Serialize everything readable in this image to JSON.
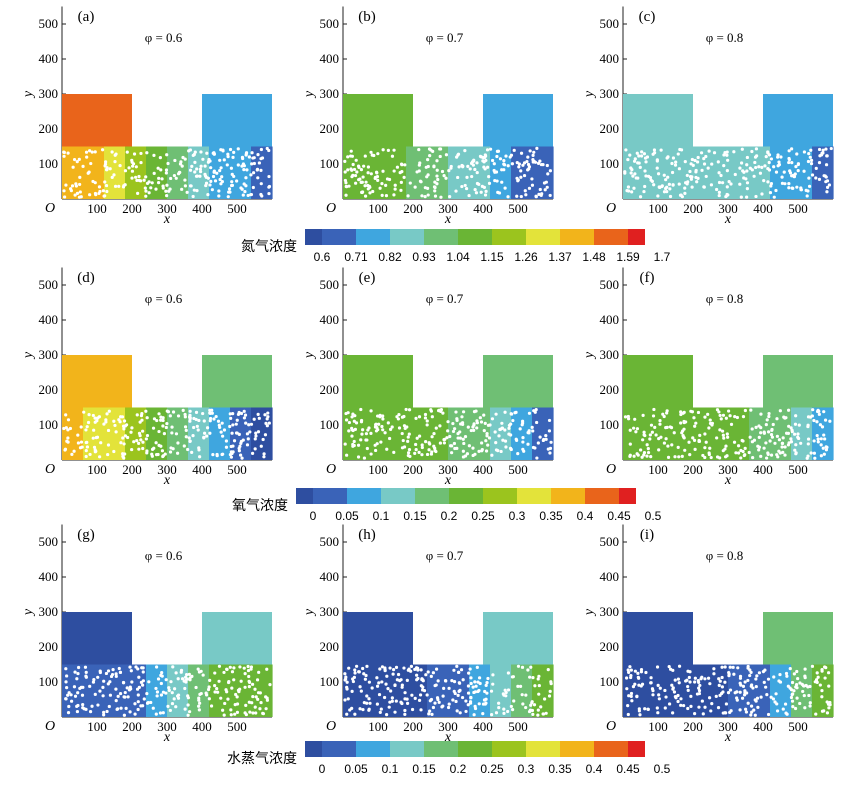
{
  "chart_data": {
    "type": "heatmap",
    "colormap": [
      "#2e4ea0",
      "#3a63b8",
      "#3fa6df",
      "#78c9c6",
      "#6fbf74",
      "#6ab535",
      "#9bc41e",
      "#e3e33a",
      "#f2b41b",
      "#e9641b",
      "#e02020"
    ],
    "rows": [
      {
        "title": "氮气浓度",
        "levels": [
          "0.6",
          "0.71",
          "0.82",
          "0.93",
          "1.04",
          "1.15",
          "1.26",
          "1.37",
          "1.48",
          "1.59",
          "1.7"
        ],
        "panels": [
          {
            "label": "(a)",
            "phi": "φ = 0.6",
            "box_color_index": 9,
            "right_color_index": 2,
            "bed_gradient": [
              8,
              8,
              7,
              6,
              5,
              4,
              3,
              2,
              2,
              1
            ]
          },
          {
            "label": "(b)",
            "phi": "φ = 0.7",
            "box_color_index": 5,
            "right_color_index": 2,
            "bed_gradient": [
              5,
              5,
              5,
              4,
              4,
              3,
              3,
              2,
              1,
              1
            ]
          },
          {
            "label": "(c)",
            "phi": "φ = 0.8",
            "box_color_index": 3,
            "right_color_index": 2,
            "bed_gradient": [
              3,
              3,
              3,
              3,
              3,
              3,
              3,
              2,
              2,
              1
            ]
          }
        ]
      },
      {
        "title": "氧气浓度",
        "levels": [
          "0",
          "0.05",
          "0.1",
          "0.15",
          "0.2",
          "0.25",
          "0.3",
          "0.35",
          "0.4",
          "0.45",
          "0.5"
        ],
        "panels": [
          {
            "label": "(d)",
            "phi": "φ = 0.6",
            "box_color_index": 8,
            "right_color_index": 4,
            "bed_gradient": [
              8,
              7,
              7,
              6,
              5,
              4,
              3,
              2,
              1,
              0
            ]
          },
          {
            "label": "(e)",
            "phi": "φ = 0.7",
            "box_color_index": 5,
            "right_color_index": 4,
            "bed_gradient": [
              5,
              5,
              5,
              5,
              5,
              4,
              4,
              3,
              2,
              1
            ]
          },
          {
            "label": "(f)",
            "phi": "φ = 0.8",
            "box_color_index": 5,
            "right_color_index": 4,
            "bed_gradient": [
              5,
              5,
              5,
              5,
              5,
              5,
              4,
              4,
              3,
              2
            ]
          }
        ]
      },
      {
        "title": "水蒸气浓度",
        "levels": [
          "0",
          "0.05",
          "0.1",
          "0.15",
          "0.2",
          "0.25",
          "0.3",
          "0.35",
          "0.4",
          "0.45",
          "0.5"
        ],
        "panels": [
          {
            "label": "(g)",
            "phi": "φ = 0.6",
            "box_color_index": 0,
            "right_color_index": 3,
            "bed_gradient": [
              1,
              1,
              1,
              1,
              2,
              3,
              4,
              5,
              5,
              5
            ]
          },
          {
            "label": "(h)",
            "phi": "φ = 0.7",
            "box_color_index": 0,
            "right_color_index": 3,
            "bed_gradient": [
              0,
              0,
              0,
              0,
              1,
              1,
              2,
              3,
              4,
              5
            ]
          },
          {
            "label": "(i)",
            "phi": "φ = 0.8",
            "box_color_index": 0,
            "right_color_index": 4,
            "bed_gradient": [
              0,
              0,
              0,
              0,
              0,
              1,
              1,
              2,
              4,
              5
            ]
          }
        ]
      }
    ],
    "x_ticks": [
      "100",
      "200",
      "300",
      "400",
      "500"
    ],
    "y_ticks": [
      "100",
      "200",
      "300",
      "400",
      "500"
    ],
    "xlabel": "x",
    "ylabel": "y",
    "origin_label": "O",
    "xlim": [
      0,
      600
    ],
    "ylim": [
      0,
      550
    ],
    "domain_shape": {
      "box_left": {
        "x": [
          0,
          200
        ],
        "y": [
          0,
          300
        ]
      },
      "box_right": {
        "x": [
          400,
          600
        ],
        "y": [
          0,
          300
        ]
      },
      "channel": {
        "x": [
          0,
          600
        ],
        "y": [
          0,
          150
        ]
      }
    },
    "particles": "white circles scattered over the bed region y 0–150"
  }
}
